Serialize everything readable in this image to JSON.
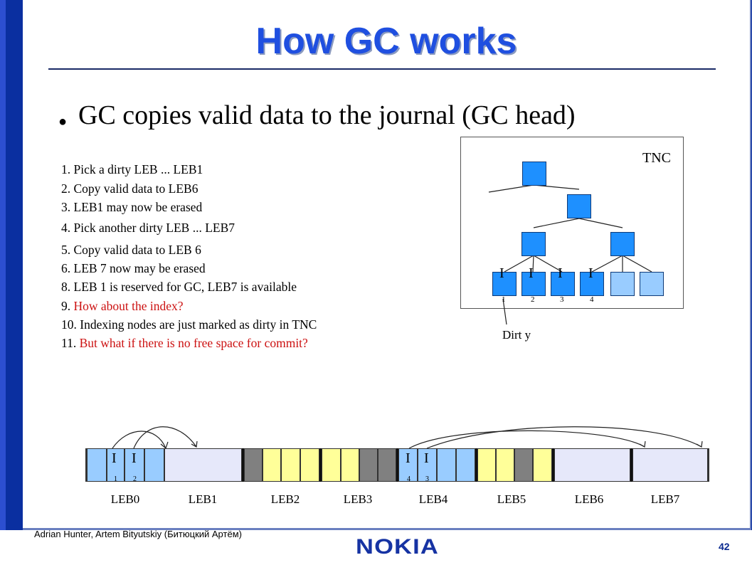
{
  "title": "How GC works",
  "bullet": "GC copies valid data to the journal (GC head)",
  "steps": {
    "s1": "1. Pick a dirty LEB ...   LEB1",
    "s2": "2. Copy valid data to LEB6",
    "s3": "3. LEB1 may now be erased",
    "s4": "4. Pick another dirty LEB ...     LEB7",
    "s5": "5. Copy valid data to LEB 6",
    "s6": "6. LEB 7 now may be erased",
    "s8": "8. LEB 1 is reserved for GC, LEB7 is available",
    "s9_num": "9. ",
    "s9_text": "How about the index?",
    "s10": "10. Indexing nodes are just marked as dirty in TNC",
    "s11_num": "11. ",
    "s11_text": "But what if there is no free space for commit?"
  },
  "tnc": {
    "label": "TNC",
    "leaf_letters": [
      "I",
      "I",
      "I",
      "I"
    ],
    "leaf_numbers": [
      "1",
      "2",
      "3",
      "4"
    ],
    "dirty_label": "Dirt y"
  },
  "strip": {
    "leb_labels": [
      "LEB0",
      "LEB1",
      "LEB2",
      "LEB3",
      "LEB4",
      "LEB5",
      "LEB6",
      "LEB7"
    ],
    "leb0_letters": [
      "I",
      "I"
    ],
    "leb0_numbers": [
      "1",
      "2"
    ],
    "leb4_letters": [
      "I",
      "I"
    ],
    "leb4_numbers": [
      "4",
      "3"
    ]
  },
  "footer": {
    "author": "Adrian Hunter, Artem Bityutskiy (Битюцкий Артём)",
    "page": "42",
    "logo": "NOKIA"
  },
  "colors": {
    "valid_index": "#99ccff",
    "free": "#e6e8fa",
    "valid_data": "#ffff99",
    "obsolete": "#808080",
    "tnc_node": "#1e90ff",
    "title": "#1f4fe0",
    "highlight": "#cc1111"
  }
}
